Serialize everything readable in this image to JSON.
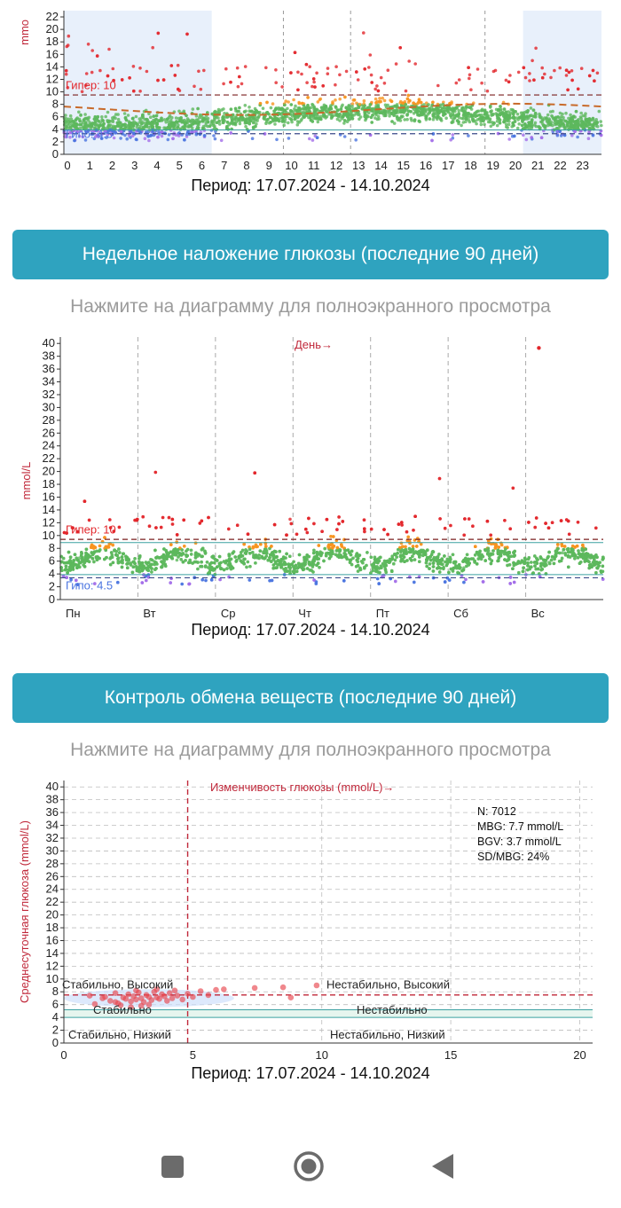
{
  "colors": {
    "banner": "#2fa3bf",
    "high": "#e2262b",
    "elevated": "#f7931e",
    "normal": "#5cb85c",
    "low_blue": "#4a74e0",
    "low_purple": "#a46ee8",
    "shade": "#e8f0fb",
    "axis_red": "#c0283a"
  },
  "charts": [
    {
      "id": "daily",
      "type": "scatter",
      "ylabel": "mmo",
      "period": "Период: 17.07.2024 - 14.10.2024",
      "hyper_label": "Гипер: 10",
      "hypo_label": "Гипо: 4.5",
      "chart_data": {
        "type": "scatter",
        "title": "",
        "xlabel": "Период: 17.07.2024 - 14.10.2024",
        "ylabel": "mmo",
        "x_ticks": [
          "0",
          "1",
          "2",
          "3",
          "4",
          "5",
          "6",
          "7",
          "8",
          "9",
          "10",
          "11",
          "12",
          "13",
          "14",
          "15",
          "16",
          "17",
          "18",
          "19",
          "20",
          "21",
          "22",
          "23"
        ],
        "y_ticks": [
          "0",
          "2",
          "4",
          "6",
          "8",
          "10",
          "12",
          "14",
          "16",
          "18",
          "20",
          "22"
        ],
        "xlim": [
          0,
          24
        ],
        "ylim": [
          0,
          23
        ],
        "grid": true,
        "thresholds": {
          "hyper": 10,
          "hypo": 4.5
        },
        "series": [
          {
            "name": "Гипер: 10",
            "color": "#e2262b"
          },
          {
            "name": "Гипо: 4.5",
            "color": "#4a74e0"
          }
        ]
      }
    },
    {
      "id": "weekly",
      "type": "scatter",
      "banner": "Недельное наложение глюкозы (последние 90 дней)",
      "hint": "Нажмите на диаграмму для полноэкранного просмотра",
      "ylabel": "mmol/L",
      "day_label": "День→",
      "period": "Период: 17.07.2024 - 14.10.2024",
      "hyper_label": "Гипер: 10",
      "hypo_label": "Гипо: 4.5",
      "chart_data": {
        "type": "scatter",
        "title": "",
        "xlabel": "Период: 17.07.2024 - 14.10.2024",
        "ylabel": "mmol/L",
        "x_ticks": [
          "Пн",
          "Вт",
          "Ср",
          "Чт",
          "Пт",
          "Сб",
          "Вс"
        ],
        "y_ticks": [
          "0",
          "2",
          "4",
          "6",
          "8",
          "10",
          "12",
          "14",
          "16",
          "18",
          "20",
          "22",
          "24",
          "26",
          "28",
          "30",
          "32",
          "34",
          "36",
          "38",
          "40"
        ],
        "xlim": [
          0,
          7
        ],
        "ylim": [
          0,
          41
        ],
        "grid": true,
        "thresholds": {
          "hyper": 10,
          "hypo": 4.5
        },
        "series": [
          {
            "name": "Гипер: 10",
            "color": "#e2262b"
          },
          {
            "name": "Гипо: 4.5",
            "color": "#4a74e0"
          }
        ]
      }
    },
    {
      "id": "metabolic",
      "type": "scatter",
      "banner": "Контроль обмена веществ (последние 90 дней)",
      "hint": "Нажмите на диаграмму для полноэкранного просмотра",
      "ylabel": "Среднесуточная глюкоза (mmol/L)",
      "xlabel_top": "Изменчивость глюкозы (mmol/L)→",
      "period": "Период: 17.07.2024 - 14.10.2024",
      "stats": [
        "N: 7012",
        "MBG: 7.7 mmol/L",
        "BGV: 3.7 mmol/L",
        "SD/MBG: 24%"
      ],
      "quadrants": {
        "stable_high": "Стабильно, Высокий",
        "unstable_high": "Нестабильно, Высокий",
        "stable": "Стабильно",
        "unstable": "Нестабильно",
        "stable_low": "Стабильно, Низкий",
        "unstable_low": "Нестабильно, Низкий"
      },
      "chart_data": {
        "type": "scatter",
        "title": "",
        "xlabel": "Изменчивость глюкозы (mmol/L)→",
        "ylabel": "Среднесуточная глюкоза (mmol/L)",
        "x_ticks": [
          "0",
          "5",
          "10",
          "15",
          "20"
        ],
        "y_ticks": [
          "0",
          "2",
          "4",
          "6",
          "8",
          "10",
          "12",
          "14",
          "16",
          "18",
          "20",
          "22",
          "24",
          "26",
          "28",
          "30",
          "32",
          "34",
          "36",
          "38",
          "40"
        ],
        "xlim": [
          0,
          20.5
        ],
        "ylim": [
          0,
          41
        ],
        "grid": true,
        "split_x": 4.8,
        "split_y": 7.5,
        "points": [
          [
            1.0,
            7.4
          ],
          [
            1.5,
            7.0
          ],
          [
            1.8,
            6.6
          ],
          [
            2.0,
            7.8
          ],
          [
            2.1,
            6.2
          ],
          [
            2.3,
            7.1
          ],
          [
            2.4,
            6.9
          ],
          [
            2.5,
            7.6
          ],
          [
            2.6,
            6.5
          ],
          [
            2.7,
            7.3
          ],
          [
            2.8,
            6.8
          ],
          [
            2.9,
            7.9
          ],
          [
            3.0,
            7.0
          ],
          [
            3.1,
            6.4
          ],
          [
            3.2,
            7.5
          ],
          [
            3.3,
            7.2
          ],
          [
            3.4,
            6.7
          ],
          [
            3.5,
            8.0
          ],
          [
            3.6,
            7.1
          ],
          [
            3.7,
            6.9
          ],
          [
            3.8,
            7.6
          ],
          [
            3.9,
            7.3
          ],
          [
            4.0,
            6.6
          ],
          [
            4.1,
            7.8
          ],
          [
            4.2,
            7.0
          ],
          [
            4.4,
            7.4
          ],
          [
            4.6,
            6.8
          ],
          [
            4.8,
            7.7
          ],
          [
            5.0,
            7.2
          ],
          [
            5.3,
            8.1
          ],
          [
            5.6,
            7.5
          ],
          [
            5.9,
            8.3
          ],
          [
            6.2,
            8.4
          ],
          [
            7.4,
            8.6
          ],
          [
            8.5,
            8.7
          ],
          [
            8.8,
            7.1
          ],
          [
            9.8,
            9.0
          ],
          [
            2.2,
            5.9
          ],
          [
            2.6,
            5.6
          ],
          [
            3.0,
            5.8
          ],
          [
            1.2,
            6.1
          ],
          [
            1.6,
            7.2
          ],
          [
            2.0,
            6.4
          ],
          [
            3.3,
            6.0
          ],
          [
            3.6,
            8.4
          ],
          [
            2.8,
            8.2
          ],
          [
            4.3,
            8.2
          ]
        ]
      }
    }
  ],
  "navbar": {
    "items": [
      "recents-button",
      "home-button",
      "back-button"
    ]
  }
}
